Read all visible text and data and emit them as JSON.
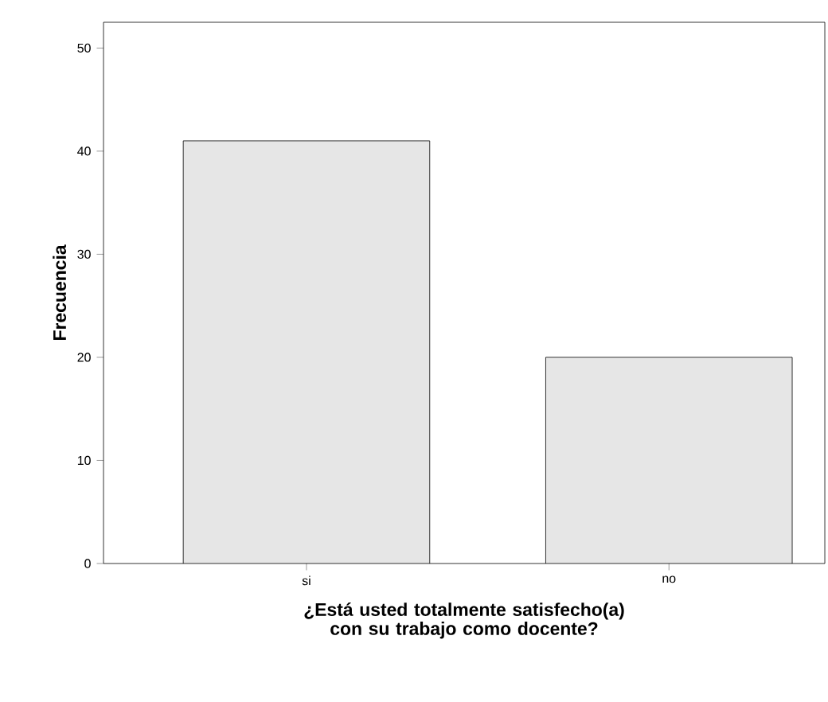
{
  "chart_data": {
    "type": "bar",
    "xlabel": "¿Está usted totalmente satisfecho(a) con su trabajo como docente?",
    "ylabel": "Frecuencia",
    "categories": [
      "si",
      "no"
    ],
    "values": [
      41,
      20
    ],
    "color": "#e6e6e6",
    "ylim": [
      0,
      52.5
    ],
    "yticks": [
      0,
      10,
      20,
      30,
      40,
      50
    ]
  }
}
